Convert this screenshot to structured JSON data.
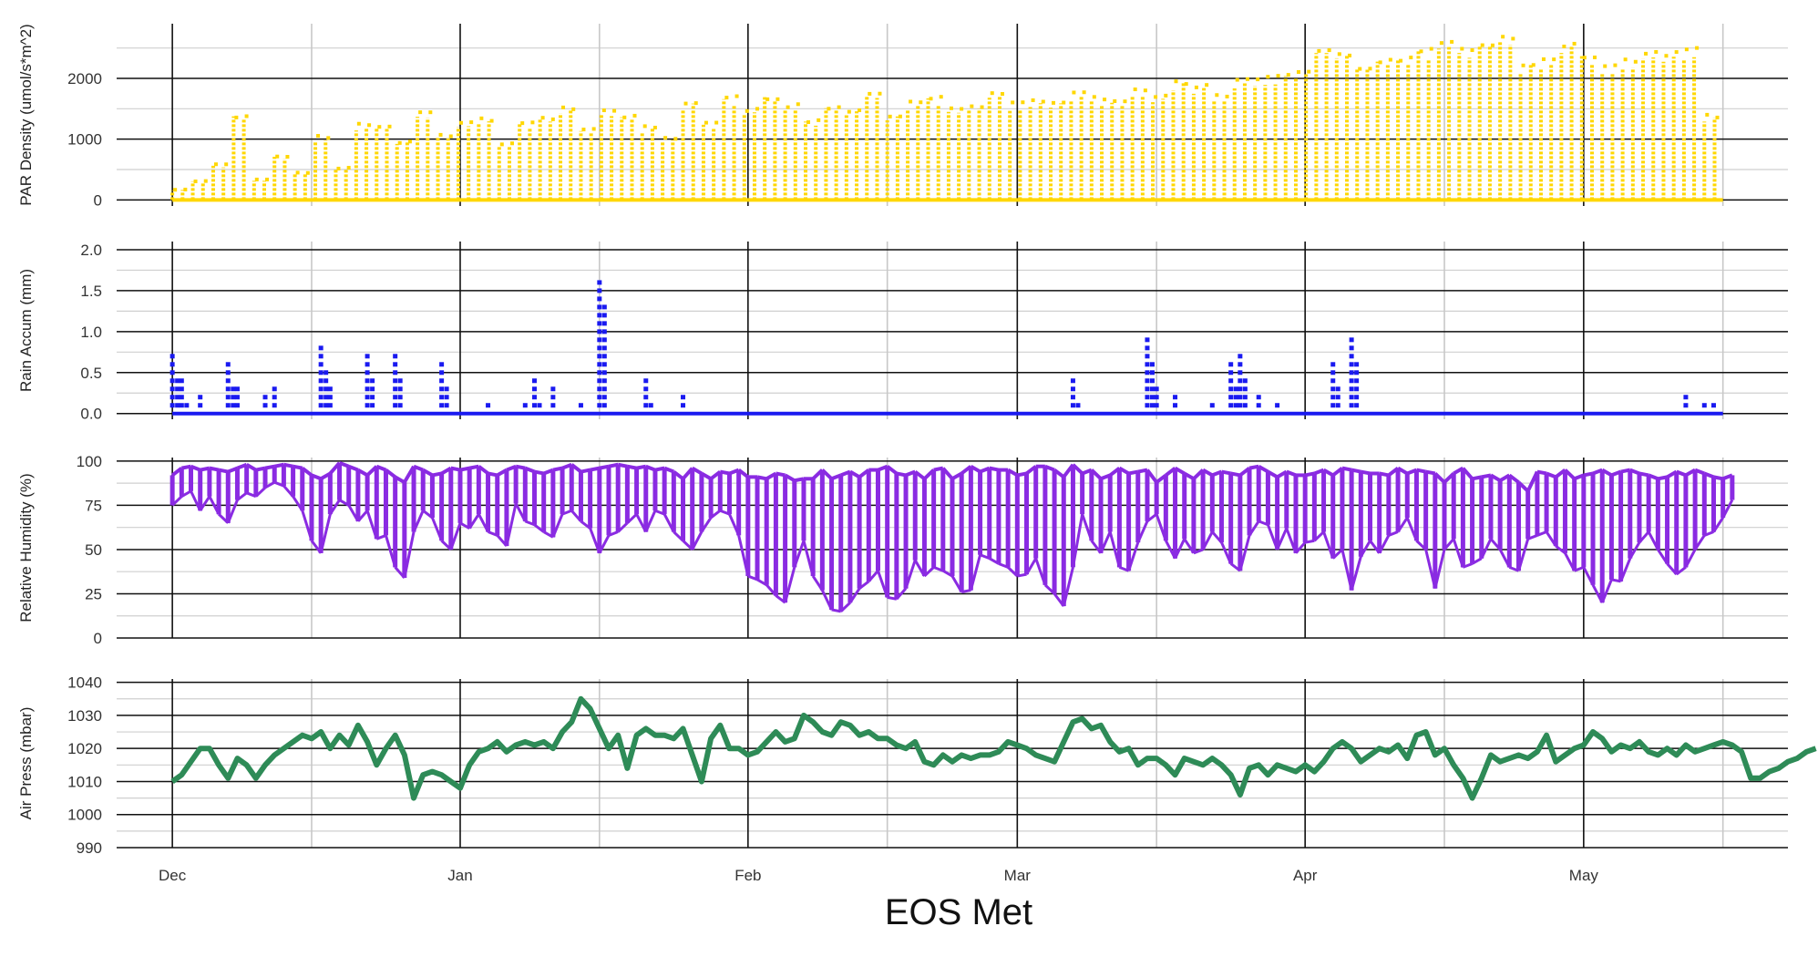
{
  "chart_data": {
    "title": "EOS Met",
    "type": "scatter",
    "x_axis": {
      "type": "date",
      "range": [
        "2023-11-25",
        "2024-05-23"
      ],
      "tick_labels": [
        "Dec",
        "Jan",
        "Feb",
        "Mar",
        "Apr",
        "May"
      ],
      "tick_dates": [
        "2023-12-01",
        "2024-01-01",
        "2024-02-01",
        "2024-03-01",
        "2024-04-01",
        "2024-05-01"
      ],
      "minor_tick_dates": [
        "2023-12-16",
        "2024-01-16",
        "2024-02-16",
        "2024-03-16",
        "2024-04-16",
        "2024-05-16"
      ],
      "data_range": [
        "2023-12-01",
        "2024-05-16"
      ]
    },
    "panels": [
      {
        "id": "par",
        "ylabel": "PAR Density (umol/s*m^2)",
        "color": "#FFD700",
        "ylim": [
          -100,
          2900
        ],
        "yticks": [
          0,
          1000,
          2000
        ],
        "ytick_labels": [
          "0",
          "1000",
          "2000"
        ],
        "series": {
          "type": "scatter",
          "x_step_days": 0.5,
          "peak_values": [
            170,
            310,
            580,
            1380,
            330,
            710,
            450,
            1040,
            520,
            1240,
            1200,
            950,
            1430,
            1060,
            1260,
            1320,
            920,
            1280,
            1340,
            1500,
            1150,
            1450,
            1380,
            1210,
            1010,
            1600,
            1260,
            1680,
            1480,
            1690,
            1550,
            1290,
            1520,
            1460,
            1750,
            1380,
            1610,
            1690,
            1500,
            1550,
            1780,
            1580,
            1650,
            1620,
            1780,
            1680,
            1650,
            1800,
            1700,
            1940,
            1860,
            1720,
            1960,
            1990,
            2040,
            2120,
            2450,
            2380,
            2200,
            2300,
            2320,
            2480,
            2600,
            2480,
            2580,
            2700,
            2240,
            2280,
            2560,
            2380,
            2200,
            2280,
            2450,
            2400,
            2480,
            1380
          ],
          "daytime_floor": 0,
          "night_value": 0
        }
      },
      {
        "id": "rain",
        "ylabel": "Rain Accum (mm)",
        "color": "#1A1AF0",
        "ylim": [
          -0.07,
          2.1
        ],
        "yticks": [
          0.0,
          0.5,
          1.0,
          1.5,
          2.0
        ],
        "ytick_labels": [
          "0.0",
          "0.5",
          "1.0",
          "1.5",
          "2.0"
        ],
        "series": {
          "type": "scatter",
          "baseline_value": 0.0,
          "events": [
            {
              "date": "2023-12-01",
              "max": 0.7
            },
            {
              "date": "2023-12-02",
              "max": 0.4
            },
            {
              "date": "2023-12-04",
              "max": 0.2
            },
            {
              "date": "2023-12-07",
              "max": 0.6
            },
            {
              "date": "2023-12-08",
              "max": 0.3
            },
            {
              "date": "2023-12-11",
              "max": 0.2
            },
            {
              "date": "2023-12-12",
              "max": 0.3
            },
            {
              "date": "2023-12-17",
              "max": 0.8
            },
            {
              "date": "2023-12-18",
              "max": 0.3
            },
            {
              "date": "2023-12-22",
              "max": 0.7
            },
            {
              "date": "2023-12-25",
              "max": 0.7
            },
            {
              "date": "2023-12-30",
              "max": 0.6
            },
            {
              "date": "2024-01-04",
              "max": 0.1
            },
            {
              "date": "2024-01-08",
              "max": 0.1
            },
            {
              "date": "2024-01-09",
              "max": 0.4
            },
            {
              "date": "2024-01-11",
              "max": 0.3
            },
            {
              "date": "2024-01-14",
              "max": 0.1
            },
            {
              "date": "2024-01-16",
              "max": 1.6
            },
            {
              "date": "2024-01-21",
              "max": 0.4
            },
            {
              "date": "2024-01-25",
              "max": 0.2
            },
            {
              "date": "2024-03-07",
              "max": 0.4
            },
            {
              "date": "2024-03-15",
              "max": 0.9
            },
            {
              "date": "2024-03-16",
              "max": 0.3
            },
            {
              "date": "2024-03-18",
              "max": 0.2
            },
            {
              "date": "2024-03-22",
              "max": 0.1
            },
            {
              "date": "2024-03-24",
              "max": 0.6
            },
            {
              "date": "2024-03-25",
              "max": 0.7
            },
            {
              "date": "2024-03-27",
              "max": 0.2
            },
            {
              "date": "2024-03-29",
              "max": 0.1
            },
            {
              "date": "2024-04-04",
              "max": 0.6
            },
            {
              "date": "2024-04-06",
              "max": 0.9
            },
            {
              "date": "2024-05-12",
              "max": 0.2
            },
            {
              "date": "2024-05-14",
              "max": 0.1
            },
            {
              "date": "2024-05-15",
              "max": 0.1
            }
          ]
        }
      },
      {
        "id": "rh",
        "ylabel": "Relative Humidity (%)",
        "color": "#8A2BE2",
        "ylim": [
          0,
          102
        ],
        "yticks": [
          0,
          25,
          50,
          75,
          100
        ],
        "ytick_labels": [
          "0",
          "25",
          "50",
          "75",
          "100"
        ],
        "series": {
          "type": "scatter",
          "x_step_days": 1,
          "upper_values": [
            92,
            96,
            97,
            95,
            96,
            95,
            94,
            96,
            98,
            95,
            96,
            97,
            98,
            97,
            96,
            92,
            90,
            93,
            99,
            97,
            95,
            92,
            97,
            95,
            91,
            88,
            97,
            95,
            92,
            93,
            96,
            95,
            96,
            97,
            93,
            92,
            95,
            97,
            96,
            94,
            93,
            95,
            96,
            98,
            94,
            95,
            96,
            97,
            98,
            97,
            96,
            97,
            95,
            96,
            94,
            90,
            96,
            93,
            90,
            94,
            93,
            95,
            91,
            91,
            90,
            93,
            92,
            89,
            90,
            90,
            95,
            90,
            92,
            94,
            91,
            95,
            95,
            97,
            93,
            92,
            94,
            90,
            95,
            96,
            90,
            93,
            97,
            94,
            96,
            95,
            95,
            92,
            93,
            97,
            97,
            95,
            91,
            98,
            93,
            95,
            90,
            92,
            96,
            93,
            94,
            95,
            88,
            92,
            96,
            93,
            90,
            95,
            92,
            94,
            93,
            92,
            96,
            97,
            94,
            91,
            94,
            92,
            92,
            93,
            95,
            92,
            96,
            95,
            94,
            93,
            93,
            92,
            96,
            93,
            95,
            94,
            93,
            88,
            93,
            96,
            90,
            91,
            92,
            89,
            92,
            88,
            83,
            94,
            93,
            91,
            95,
            90,
            92,
            93,
            95,
            92,
            94,
            95,
            93,
            92,
            90,
            91,
            94,
            92,
            95,
            93,
            91,
            90,
            92
          ],
          "lower_values": [
            75,
            80,
            83,
            72,
            80,
            70,
            65,
            78,
            82,
            80,
            85,
            88,
            86,
            80,
            72,
            55,
            48,
            70,
            78,
            75,
            66,
            72,
            56,
            58,
            40,
            34,
            60,
            72,
            68,
            55,
            50,
            65,
            62,
            70,
            60,
            58,
            52,
            76,
            66,
            64,
            60,
            57,
            70,
            72,
            66,
            62,
            48,
            58,
            60,
            65,
            70,
            60,
            72,
            70,
            60,
            55,
            50,
            60,
            68,
            72,
            70,
            58,
            35,
            33,
            30,
            24,
            20,
            40,
            55,
            35,
            27,
            16,
            15,
            20,
            28,
            32,
            38,
            23,
            22,
            28,
            44,
            35,
            40,
            38,
            35,
            26,
            27,
            47,
            45,
            42,
            40,
            35,
            36,
            45,
            30,
            25,
            18,
            40,
            70,
            55,
            48,
            60,
            40,
            38,
            54,
            66,
            70,
            55,
            45,
            56,
            48,
            50,
            60,
            54,
            42,
            38,
            58,
            66,
            64,
            50,
            62,
            48,
            54,
            55,
            60,
            45,
            50,
            27,
            46,
            55,
            48,
            58,
            60,
            68,
            55,
            50,
            28,
            50,
            56,
            40,
            42,
            45,
            56,
            50,
            40,
            38,
            56,
            58,
            60,
            52,
            48,
            38,
            40,
            30,
            20,
            33,
            32,
            45,
            54,
            60,
            50,
            42,
            36,
            40,
            50,
            58,
            60,
            68,
            78
          ]
        }
      },
      {
        "id": "press",
        "ylabel": "Air Press (mbar)",
        "color": "#2E8B57",
        "ylim": [
          990,
          1041
        ],
        "yticks": [
          990,
          1000,
          1010,
          1020,
          1030,
          1040
        ],
        "ytick_labels": [
          "990",
          "1000",
          "1010",
          "1020",
          "1030",
          "1040"
        ],
        "series": {
          "type": "line",
          "x_step_days": 1,
          "values": [
            1010,
            1012,
            1016,
            1020,
            1020,
            1015,
            1011,
            1017,
            1015,
            1011,
            1015,
            1018,
            1020,
            1022,
            1024,
            1023,
            1025,
            1020,
            1024,
            1021,
            1027,
            1022,
            1015,
            1020,
            1024,
            1018,
            1005,
            1012,
            1013,
            1012,
            1010,
            1008,
            1015,
            1019,
            1020,
            1022,
            1019,
            1021,
            1022,
            1021,
            1022,
            1020,
            1025,
            1028,
            1035,
            1032,
            1026,
            1020,
            1024,
            1014,
            1024,
            1026,
            1024,
            1024,
            1023,
            1026,
            1018,
            1010,
            1023,
            1027,
            1020,
            1020,
            1018,
            1019,
            1022,
            1025,
            1022,
            1023,
            1030,
            1028,
            1025,
            1024,
            1028,
            1027,
            1024,
            1025,
            1023,
            1023,
            1021,
            1020,
            1022,
            1016,
            1015,
            1018,
            1016,
            1018,
            1017,
            1018,
            1018,
            1019,
            1022,
            1021,
            1020,
            1018,
            1017,
            1016,
            1022,
            1028,
            1029,
            1026,
            1027,
            1022,
            1019,
            1020,
            1015,
            1017,
            1017,
            1015,
            1012,
            1017,
            1016,
            1015,
            1017,
            1015,
            1012,
            1006,
            1014,
            1015,
            1012,
            1015,
            1014,
            1013,
            1015,
            1013,
            1016,
            1020,
            1022,
            1020,
            1016,
            1018,
            1020,
            1019,
            1021,
            1017,
            1024,
            1025,
            1018,
            1020,
            1015,
            1011,
            1005,
            1011,
            1018,
            1016,
            1017,
            1018,
            1017,
            1019,
            1024,
            1016,
            1018,
            1020,
            1021,
            1025,
            1023,
            1019,
            1021,
            1020,
            1022,
            1019,
            1018,
            1020,
            1018,
            1021,
            1019,
            1020,
            1021,
            1022,
            1021,
            1019,
            1011,
            1011,
            1013,
            1014,
            1016,
            1017,
            1019,
            1020
          ]
        }
      }
    ]
  }
}
